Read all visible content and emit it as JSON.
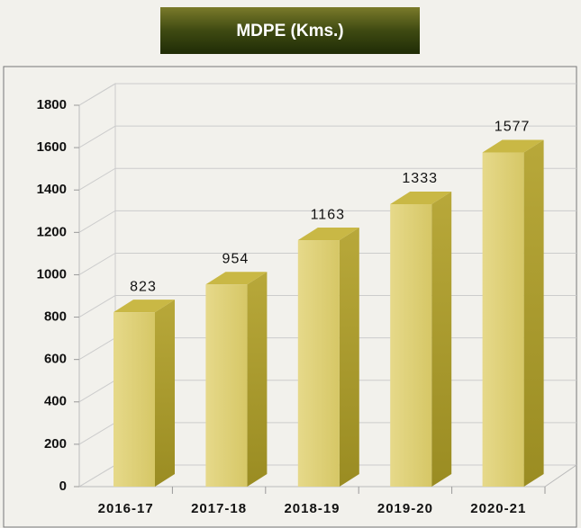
{
  "chart_data": {
    "type": "bar3d",
    "title": "MDPE (Kms.)",
    "categories": [
      "2016-17",
      "2017-18",
      "2018-19",
      "2019-20",
      "2020-21"
    ],
    "values": [
      823,
      954,
      1163,
      1333,
      1577
    ],
    "color": "#dccd72",
    "ylim": [
      0,
      1800
    ],
    "yticks": [
      0,
      200,
      400,
      600,
      800,
      1000,
      1200,
      1400,
      1600,
      1800
    ],
    "grid": true
  }
}
